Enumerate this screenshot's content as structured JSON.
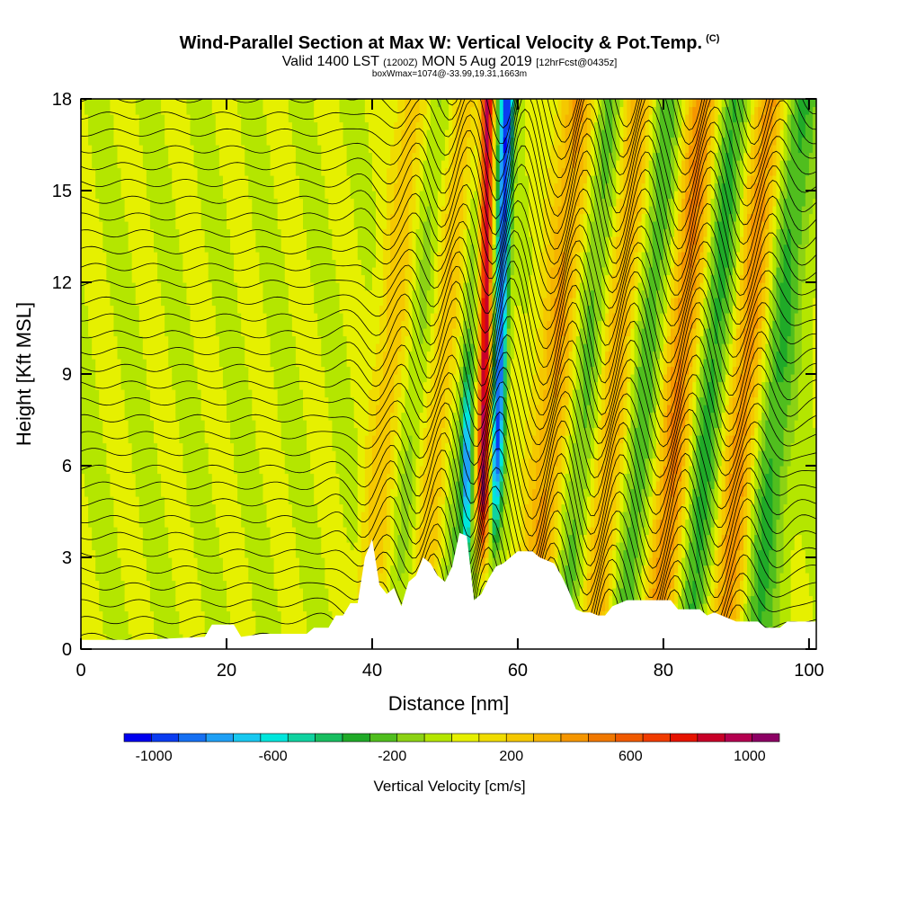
{
  "header": {
    "title": "Wind-Parallel Section at Max W: Vertical Velocity & Pot.Temp.",
    "copyright": "(C)",
    "valid_prefix": "Valid 1400 LST",
    "valid_utc": "(1200Z)",
    "valid_date": "MON 5 Aug 2019",
    "forecast": "[12hrFcst@0435z]",
    "box_info": "boxWmax=1074@-33.99,19.31,1663m"
  },
  "chart_data": {
    "type": "heatmap",
    "xlabel": "Distance [nm]",
    "ylabel": "Height [Kft MSL]",
    "xlim": [
      0,
      101
    ],
    "ylim": [
      0,
      18
    ],
    "x_ticks": [
      0,
      20,
      40,
      60,
      80,
      100
    ],
    "x_tick_labels": [
      "0",
      "20",
      "40",
      "60",
      "80",
      "100"
    ],
    "y_ticks": [
      0,
      3,
      6,
      9,
      12,
      15,
      18
    ],
    "y_tick_labels": [
      "0",
      "3",
      "6",
      "9",
      "12",
      "15",
      "18"
    ],
    "colorbar": {
      "title": "Vertical Velocity [cm/s]",
      "min": -1100,
      "max": 1100,
      "step": 100,
      "tick_values": [
        -1000,
        -600,
        -200,
        200,
        600,
        1000
      ],
      "tick_labels": [
        "-1000",
        "-600",
        "-200",
        "200",
        "600",
        "1000"
      ],
      "colors": [
        "#0000ee",
        "#0a3cf0",
        "#1670f2",
        "#1fa0f5",
        "#18c8f0",
        "#00e6dc",
        "#10d2a0",
        "#18be60",
        "#20aa28",
        "#50be1e",
        "#8cd214",
        "#b4e600",
        "#e6f000",
        "#f0dc00",
        "#f5c800",
        "#f5b400",
        "#f59600",
        "#f07800",
        "#f05a00",
        "#f03c00",
        "#e61400",
        "#c80028",
        "#b40050",
        "#8c0064"
      ]
    },
    "terrain_nm_kft": [
      [
        0,
        0.3
      ],
      [
        8,
        0.3
      ],
      [
        17,
        0.4
      ],
      [
        18,
        0.8
      ],
      [
        21,
        0.8
      ],
      [
        22,
        0.4
      ],
      [
        25,
        0.5
      ],
      [
        31,
        0.5
      ],
      [
        32,
        0.7
      ],
      [
        34,
        0.7
      ],
      [
        35,
        1.1
      ],
      [
        36,
        1.1
      ],
      [
        37,
        1.5
      ],
      [
        38,
        1.5
      ],
      [
        39,
        3.0
      ],
      [
        40,
        3.6
      ],
      [
        41,
        2.1
      ],
      [
        42,
        1.8
      ],
      [
        43,
        2.0
      ],
      [
        44,
        1.4
      ],
      [
        45,
        2.2
      ],
      [
        46,
        2.4
      ],
      [
        47,
        3.0
      ],
      [
        48,
        2.8
      ],
      [
        49,
        2.4
      ],
      [
        50,
        2.2
      ],
      [
        51,
        2.7
      ],
      [
        52,
        3.8
      ],
      [
        53,
        3.7
      ],
      [
        54,
        1.6
      ],
      [
        55,
        1.8
      ],
      [
        56,
        2.3
      ],
      [
        57,
        2.7
      ],
      [
        58,
        2.8
      ],
      [
        59,
        3.0
      ],
      [
        60,
        3.2
      ],
      [
        62,
        3.2
      ],
      [
        63,
        3.0
      ],
      [
        64,
        2.9
      ],
      [
        65,
        2.8
      ],
      [
        66,
        2.4
      ],
      [
        67,
        1.9
      ],
      [
        68,
        1.3
      ],
      [
        69,
        1.2
      ],
      [
        70,
        1.2
      ],
      [
        71,
        1.1
      ],
      [
        72,
        1.1
      ],
      [
        73,
        1.4
      ],
      [
        74,
        1.5
      ],
      [
        75,
        1.6
      ],
      [
        76,
        1.6
      ],
      [
        81,
        1.6
      ],
      [
        82,
        1.3
      ],
      [
        83,
        1.3
      ],
      [
        85,
        1.3
      ],
      [
        86,
        1.1
      ],
      [
        87,
        1.2
      ],
      [
        88,
        1.1
      ],
      [
        89,
        1.0
      ],
      [
        90,
        0.9
      ],
      [
        93,
        0.9
      ],
      [
        94,
        0.7
      ],
      [
        96,
        0.7
      ],
      [
        97,
        0.9
      ],
      [
        101,
        0.9
      ]
    ],
    "w_features": [
      {
        "x": 55.5,
        "w": 1074,
        "kind": "max-updraft"
      },
      {
        "x": 57.5,
        "w": -900,
        "kind": "max-downdraft"
      },
      {
        "x": 53,
        "w": -800,
        "kind": "downdraft"
      },
      {
        "x": 41,
        "w": 250,
        "kind": "updraft-wave"
      },
      {
        "x": 48,
        "w": 300,
        "kind": "updraft-wave"
      },
      {
        "x": 64,
        "w": 400,
        "kind": "updraft-wave"
      },
      {
        "x": 72,
        "w": 400,
        "kind": "updraft-wave"
      },
      {
        "x": 81,
        "w": 500,
        "kind": "updraft-wave"
      },
      {
        "x": 90,
        "w": 450,
        "kind": "updraft-wave"
      }
    ]
  }
}
